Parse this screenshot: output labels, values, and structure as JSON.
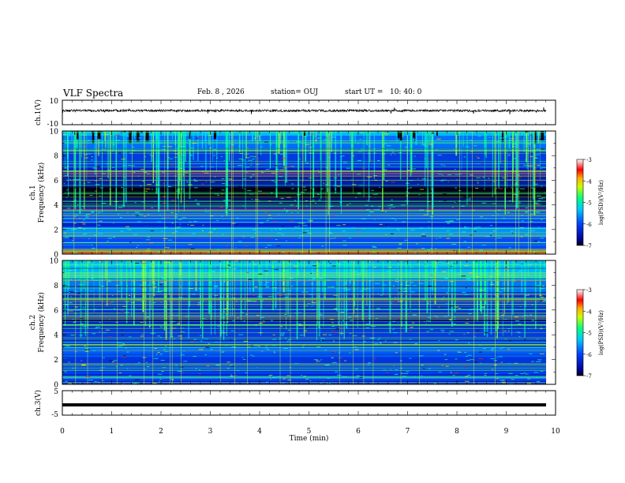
{
  "header": {
    "title": "VLF Spectra",
    "date": "Feb. 8 , 2026",
    "station_label": "station= OUJ",
    "start_label": "start UT =",
    "start_time": "10: 40: 0"
  },
  "chart_data": [
    {
      "type": "line",
      "name": "ch1-waveform",
      "ylabel": "ch.1(V)",
      "ylim": [
        -10,
        10
      ],
      "yticks": [
        "10",
        "-10"
      ],
      "xlim": [
        0,
        10
      ],
      "baseline_value": 1.5,
      "note": "dense noisy waveform around ~1.5 V with spikes"
    },
    {
      "type": "heatmap",
      "name": "ch1-spectrogram",
      "ylabel_line1": "ch.1",
      "ylabel_line2": "Frequency (kHz)",
      "ylim": [
        0,
        10
      ],
      "yticks": [
        "0",
        "2",
        "4",
        "6",
        "8",
        "10"
      ],
      "xlim": [
        0,
        9.8
      ],
      "colorbar": {
        "label": "log(PSD)(V²/Hz)",
        "ticks": [
          "-3",
          "-4",
          "-5",
          "-6",
          "-7"
        ],
        "range": [
          -7,
          -3
        ]
      }
    },
    {
      "type": "heatmap",
      "name": "ch2-spectrogram",
      "ylabel_line1": "ch.2",
      "ylabel_line2": "Frequency (kHz)",
      "ylim": [
        0,
        10
      ],
      "yticks": [
        "0",
        "2",
        "4",
        "6",
        "8",
        "10"
      ],
      "xlim": [
        0,
        9.8
      ],
      "colorbar": {
        "label": "log(PSD)(V²/Hz)",
        "ticks": [
          "-3",
          "-4",
          "-5",
          "-6",
          "-7"
        ],
        "range": [
          -7,
          -3
        ]
      }
    },
    {
      "type": "line",
      "name": "ch3-waveform",
      "ylabel": "ch.3(V)",
      "ylim": [
        -5,
        5
      ],
      "yticks": [
        "5",
        "-5"
      ],
      "xlim": [
        0,
        10
      ],
      "baseline_value": -0.8
    }
  ],
  "xaxis": {
    "label": "Time (min)",
    "ticks": [
      "0",
      "1",
      "2",
      "3",
      "4",
      "5",
      "6",
      "7",
      "8",
      "9",
      "10"
    ]
  }
}
